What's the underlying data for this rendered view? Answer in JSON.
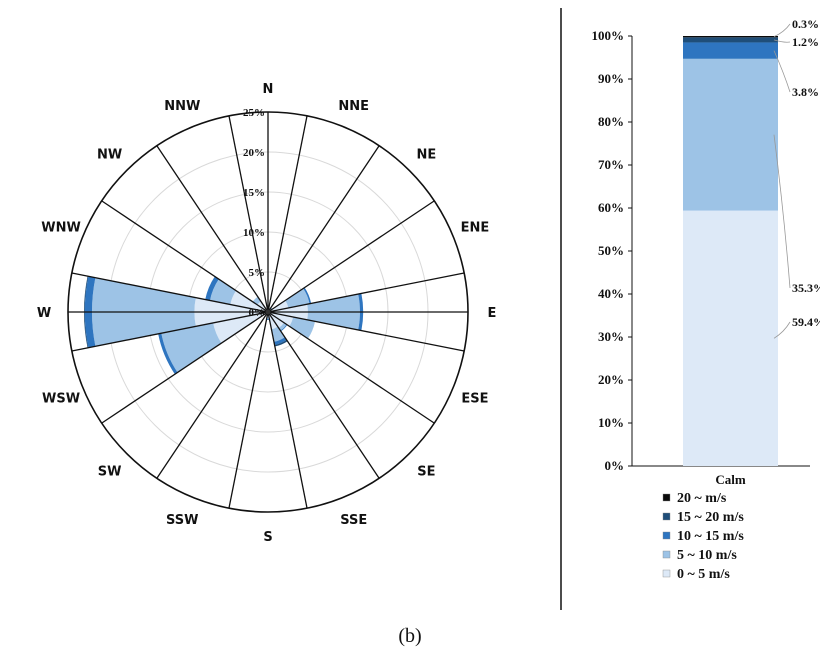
{
  "chart_data": [
    {
      "type": "windrose",
      "directions": [
        "N",
        "NNE",
        "NE",
        "ENE",
        "E",
        "ESE",
        "SE",
        "SSE",
        "S",
        "SSW",
        "SW",
        "WSW",
        "W",
        "WNW",
        "NW",
        "NNW"
      ],
      "ring_ticks": [
        "0%",
        "5%",
        "10%",
        "15%",
        "20%",
        "25%"
      ],
      "r_max": 25,
      "series": [
        {
          "name": "0 ~ 5 m/s",
          "color": "#dde9f7",
          "values": [
            0.3,
            0.3,
            0.4,
            2.6,
            5.0,
            3.2,
            2.4,
            2.2,
            0.6,
            0.3,
            0.3,
            7.0,
            9.2,
            4.8,
            1.6,
            0.3
          ]
        },
        {
          "name": "5 ~ 10 m/s",
          "color": "#9dc3e6",
          "values": [
            0.0,
            0.2,
            0.3,
            2.7,
            6.5,
            2.8,
            0.4,
            1.6,
            0.3,
            0.1,
            0.1,
            6.6,
            12.8,
            2.6,
            0.7,
            0.0
          ]
        },
        {
          "name": "10 ~ 15 m/s",
          "color": "#2e75c0",
          "values": [
            0.0,
            0.0,
            0.0,
            0.2,
            0.4,
            0.0,
            0.1,
            0.4,
            0.1,
            0.0,
            0.0,
            0.4,
            0.9,
            0.6,
            0.0,
            0.0
          ]
        },
        {
          "name": "15 ~ 20 m/s",
          "color": "#1f4e79",
          "values": [
            0.0,
            0.0,
            0.0,
            0.0,
            0.0,
            0.0,
            0.0,
            0.2,
            0.0,
            0.0,
            0.0,
            0.0,
            0.1,
            0.0,
            0.0,
            0.0
          ]
        },
        {
          "name": "20 ~ m/s",
          "color": "#0b0b0b",
          "values": [
            0.0,
            0.0,
            0.0,
            0.0,
            0.0,
            0.0,
            0.0,
            0.0,
            0.0,
            0.0,
            0.0,
            0.0,
            0.0,
            0.0,
            0.0,
            0.0
          ]
        }
      ]
    },
    {
      "type": "bar",
      "stacked": true,
      "categories": [
        "Calm"
      ],
      "yticks": [
        "0%",
        "10%",
        "20%",
        "30%",
        "40%",
        "50%",
        "60%",
        "70%",
        "80%",
        "90%",
        "100%"
      ],
      "ylim": [
        0,
        100
      ],
      "series": [
        {
          "name": "0 ~ 5 m/s",
          "color": "#dde9f7",
          "values": [
            59.4
          ],
          "label": "59.4%"
        },
        {
          "name": "5 ~ 10 m/s",
          "color": "#9dc3e6",
          "values": [
            35.3
          ],
          "label": "35.3%"
        },
        {
          "name": "10 ~ 15 m/s",
          "color": "#2e75c0",
          "values": [
            3.8
          ],
          "label": "3.8%"
        },
        {
          "name": "15 ~ 20 m/s",
          "color": "#1f4e79",
          "values": [
            1.2
          ],
          "label": "1.2%"
        },
        {
          "name": "20 ~ m/s",
          "color": "#0b0b0b",
          "values": [
            0.3
          ],
          "label": "0.3%"
        }
      ],
      "legend": [
        "20 ~ m/s",
        "15 ~ 20 m/s",
        "10 ~ 15 m/s",
        "5 ~ 10 m/s",
        "0 ~ 5 m/s"
      ]
    }
  ],
  "caption": "(b)"
}
